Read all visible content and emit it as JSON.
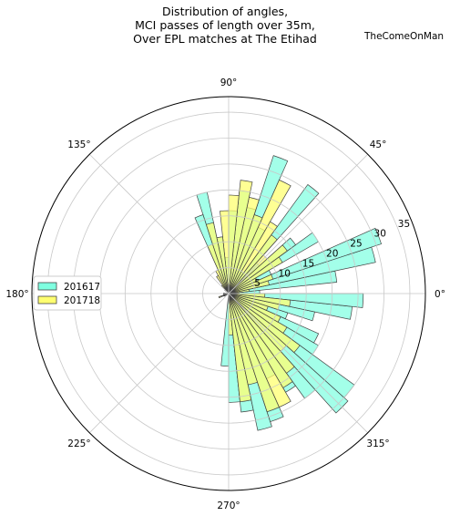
{
  "chart_data": {
    "type": "polar-histogram",
    "title_lines": [
      "Distribution of angles,",
      "MCI passes of length over 35m,",
      "Over EPL matches at The Etihad"
    ],
    "credit": "TheComeOnMan",
    "bin_width_deg": 6,
    "bin_start_deg": [
      0,
      6,
      12,
      18,
      24,
      30,
      36,
      42,
      48,
      54,
      60,
      66,
      72,
      78,
      84,
      90,
      96,
      102,
      108,
      114,
      120,
      126,
      132,
      138,
      144,
      150,
      156,
      162,
      168,
      174,
      180,
      186,
      192,
      198,
      204,
      210,
      216,
      222,
      228,
      234,
      240,
      246,
      252,
      258,
      264,
      270,
      276,
      282,
      288,
      294,
      300,
      306,
      312,
      318,
      324,
      330,
      336,
      342,
      348,
      354
    ],
    "angle_tick_labels": [
      "0°",
      "45°",
      "90°",
      "135°",
      "180°",
      "225°",
      "270°",
      "315°"
    ],
    "angle_tick_values": [
      0,
      45,
      90,
      135,
      180,
      225,
      270,
      315
    ],
    "radial_ticks": [
      5,
      10,
      15,
      20,
      25,
      30,
      35
    ],
    "radial_max": 38,
    "legend_location": "center-left",
    "colors": {
      "201617": "#7fffe0",
      "201718": "#ffff70",
      "edge": "#444444",
      "grid": "#c8c8c8"
    },
    "series": [
      {
        "name": "201617",
        "color": "#7fffe0",
        "values": [
          6,
          21,
          29,
          31,
          9,
          20,
          16,
          8,
          26,
          5,
          14,
          28,
          17,
          20,
          16,
          7,
          11,
          20,
          16,
          3,
          2,
          1,
          1,
          0,
          0,
          0,
          0,
          0,
          0,
          1,
          1,
          0,
          0,
          1,
          1,
          0,
          0,
          0,
          0,
          0,
          0,
          0,
          0,
          0,
          14,
          21,
          23,
          27,
          26,
          18,
          22,
          25,
          31,
          30,
          20,
          19,
          12,
          17,
          24,
          26
        ]
      },
      {
        "name": "201718",
        "color": "#ffff70",
        "values": [
          2,
          4,
          8,
          9,
          6,
          12,
          14,
          10,
          14,
          16,
          24,
          16,
          19,
          22,
          19,
          16,
          11,
          14,
          10,
          5,
          4,
          2,
          1,
          0,
          0,
          0,
          0,
          0,
          0,
          0,
          1,
          0,
          1,
          2,
          1,
          0,
          0,
          0,
          0,
          0,
          0,
          0,
          0,
          0,
          0,
          8,
          21,
          18,
          24,
          24,
          21,
          19,
          15,
          17,
          13,
          11,
          8,
          10,
          12,
          7
        ]
      }
    ]
  }
}
